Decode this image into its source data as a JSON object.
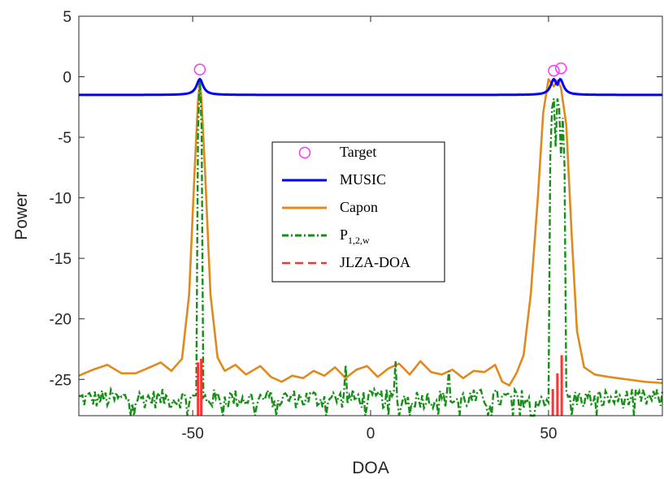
{
  "chart_data": {
    "type": "line",
    "xlabel": "DOA",
    "ylabel": "Power",
    "xlim": [
      -82,
      82
    ],
    "ylim": [
      -28,
      5
    ],
    "xticks": [
      -50,
      0,
      50
    ],
    "yticks": [
      5,
      0,
      -5,
      -10,
      -15,
      -20,
      -25
    ],
    "grid": false,
    "legend_position": "center",
    "legend": [
      {
        "key": "target",
        "label": "Target",
        "p_main": "",
        "p_sub": ""
      },
      {
        "key": "music",
        "label": "MUSIC",
        "p_main": "",
        "p_sub": ""
      },
      {
        "key": "capon",
        "label": "Capon",
        "p_main": "",
        "p_sub": ""
      },
      {
        "key": "p12w",
        "label": "",
        "p_main": "P",
        "p_sub": "1,2,w"
      },
      {
        "key": "jlza",
        "label": "JLZA-DOA",
        "p_main": "",
        "p_sub": ""
      }
    ],
    "colors": {
      "target": "#ff33ff",
      "music": "#0000ff",
      "capon": "#e08a1e",
      "p12w": "#168f16",
      "jlza": "#ff3333"
    },
    "series": [
      {
        "key": "target",
        "kind": "marker",
        "x": [
          -48,
          51.5,
          53.5
        ],
        "y": [
          0.6,
          0.5,
          0.7
        ]
      },
      {
        "key": "music",
        "kind": "line",
        "baseline": -1.5,
        "peaks": [
          {
            "x": -48,
            "y": -0.2
          },
          {
            "x": 51.5,
            "y": -0.2
          },
          {
            "x": 53.3,
            "y": -0.2
          }
        ]
      },
      {
        "key": "capon",
        "kind": "line",
        "x": [
          -82,
          -78,
          -74,
          -70,
          -66,
          -62,
          -59,
          -56,
          -53,
          -51,
          -49.5,
          -48.5,
          -48,
          -47.5,
          -46.5,
          -45,
          -43,
          -41,
          -38,
          -35,
          -31,
          -28,
          -25,
          -22,
          -19,
          -16,
          -13,
          -10,
          -7,
          -4,
          -1,
          2,
          5,
          8,
          11,
          14,
          17,
          20,
          23,
          26,
          29,
          32,
          35,
          37,
          39,
          41,
          43,
          45,
          47,
          48.5,
          50,
          51.5,
          52.5,
          53.5,
          55,
          56.5,
          58,
          60,
          63,
          67,
          72,
          77,
          82
        ],
        "y": [
          -24.7,
          -24.2,
          -23.8,
          -24.5,
          -24.5,
          -24,
          -23.6,
          -24.3,
          -23.3,
          -18,
          -8,
          -2,
          -0.3,
          -2,
          -8,
          -18,
          -23.2,
          -24.3,
          -23.8,
          -24.6,
          -23.9,
          -24.8,
          -25.2,
          -24.7,
          -24.9,
          -24.3,
          -24.7,
          -24,
          -24.9,
          -24.2,
          -23.9,
          -24.8,
          -24.1,
          -23.7,
          -24.6,
          -23.5,
          -24.4,
          -24.6,
          -24.2,
          -24.9,
          -24.3,
          -24.4,
          -23.8,
          -25.2,
          -25.5,
          -24.5,
          -23,
          -18,
          -10,
          -3,
          -0.2,
          -0.8,
          -0.3,
          -0.9,
          -4,
          -13,
          -21,
          -24,
          -24.6,
          -24.8,
          -25,
          -25.2,
          -25.3
        ]
      },
      {
        "key": "p12w",
        "kind": "line",
        "peaks": [
          {
            "x": -48,
            "y": -0.2
          },
          {
            "x": 51.3,
            "y": -0.2
          },
          {
            "x": 52.7,
            "y": -0.2
          },
          {
            "x": 53.6,
            "y": -0.2
          }
        ],
        "spikes": [
          {
            "x": -7,
            "y": -23.8
          },
          {
            "x": 7,
            "y": -23.5
          },
          {
            "x": 22,
            "y": -24.3
          }
        ],
        "noise_center": -26.6,
        "noise_amplitude": 0.8,
        "noise_floor": -28
      },
      {
        "key": "jlza",
        "kind": "stem",
        "bottom": -28,
        "x": [
          -48.5,
          -47.6,
          51.2,
          52.5,
          53.7
        ],
        "y": [
          -23.6,
          -23.3,
          -25.8,
          -24.5,
          -23
        ]
      }
    ]
  }
}
